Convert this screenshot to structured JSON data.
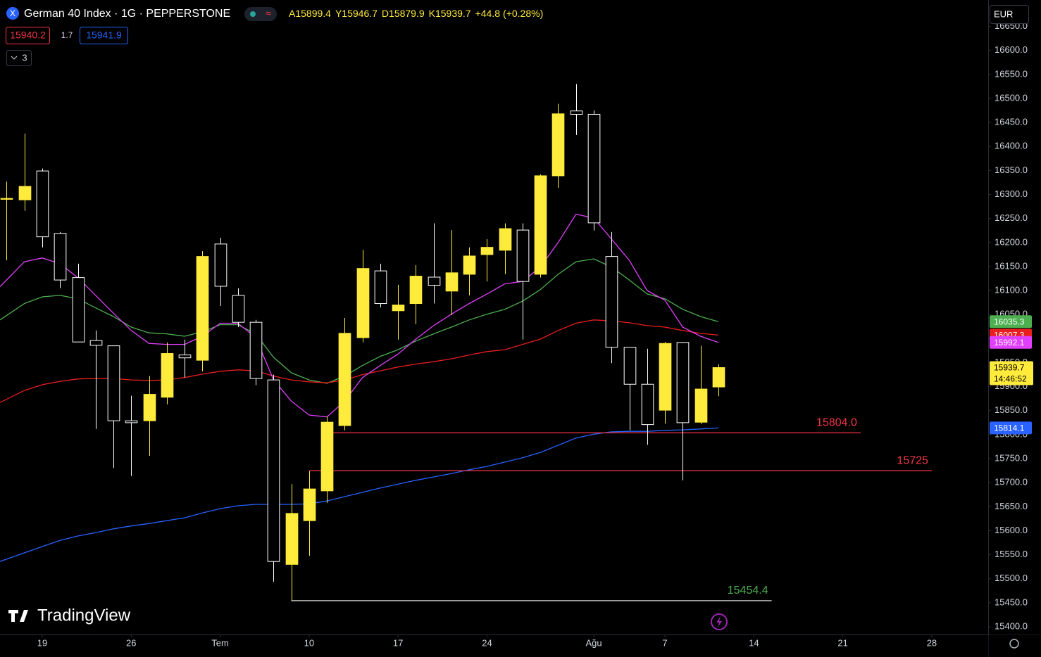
{
  "chart_data": {
    "type": "candlestick",
    "title": "German 40 Index · 1G · PEPPERSTONE",
    "ohlc_prefixes": [
      "A",
      "Y",
      "D",
      "K"
    ],
    "change": "+44.8",
    "change_pct": "(+0.28%)",
    "countdown": "14:46:52",
    "up_color": "#ffeb3b",
    "down_color": "#ffffff",
    "x": [
      -2,
      -1,
      0,
      1,
      2,
      3,
      4,
      5,
      6,
      7,
      8,
      9,
      10,
      11,
      12,
      13,
      14,
      15,
      16,
      17,
      18,
      19,
      20,
      21,
      22,
      23,
      24,
      25,
      26,
      27,
      28,
      29,
      30,
      31,
      32,
      33,
      34,
      35,
      36,
      37,
      38
    ],
    "open": [
      16290,
      16289,
      16349,
      16219,
      16127,
      15996,
      15985,
      15829,
      15829,
      15878,
      15966,
      15955,
      16197,
      16090,
      16034,
      15914,
      15530,
      15621,
      15683,
      15819,
      16002,
      16141,
      16058,
      16073,
      16128,
      16099,
      16134,
      16175,
      16184,
      16226,
      16134,
      16339,
      16474,
      16467,
      16171,
      15982,
      15905,
      15851,
      15992,
      15826,
      15899.4
    ],
    "high": [
      16327,
      16427,
      16354,
      16222,
      16156,
      16017,
      15985,
      15881,
      15922,
      15992,
      15998,
      16182,
      16210,
      16105,
      16039,
      15925,
      15697,
      15724,
      15838,
      16043,
      16185,
      16156,
      16112,
      16153,
      16240,
      16226,
      16190,
      16207,
      16240,
      16240,
      16342,
      16489,
      16530,
      16475,
      16222,
      15982,
      15979,
      15993,
      15993,
      15985,
      15946.7
    ],
    "low": [
      16163,
      16266,
      16190,
      16105,
      15993,
      15812,
      15731,
      15714,
      15756,
      15863,
      15919,
      15932,
      16068,
      16024,
      15903,
      15494,
      15454.4,
      15548,
      15658,
      15809,
      15992,
      16065,
      15998,
      16030,
      16073,
      16049,
      16090,
      16119,
      16134,
      15998,
      16127,
      16314,
      16424,
      16225,
      15949,
      15809,
      15779,
      15823,
      15705,
      15822,
      15879.9
    ],
    "close": [
      16292,
      16317,
      16212,
      16122,
      15993,
      15986,
      15829,
      15825,
      15884,
      15969,
      15960,
      16171,
      16109,
      16034,
      15917,
      15536,
      15636,
      15687,
      15826,
      16011,
      16146,
      16073,
      16070,
      16130,
      16111,
      16137,
      16172,
      16190,
      16229,
      16119,
      16339,
      16468,
      16467,
      16241,
      15982,
      15905,
      15821,
      15990,
      15825,
      15895,
      15939.7
    ],
    "line_x": [
      -2.375,
      -1,
      0,
      1,
      2,
      3,
      4,
      5,
      6,
      7,
      8,
      9,
      10,
      11,
      12,
      13,
      14,
      15,
      16,
      17,
      18,
      19,
      20,
      21,
      22,
      23,
      24,
      25,
      26,
      27,
      28,
      29,
      30,
      31,
      32,
      33,
      34,
      35,
      36,
      37,
      38
    ],
    "series": [
      {
        "color": "#4caf50",
        "values": [
          16039,
          16073,
          16087,
          16090,
          16083,
          16064,
          16046,
          16024,
          16012,
          16010,
          16005,
          16014,
          16029,
          16029,
          16010,
          15961,
          15929,
          15914,
          15907,
          15922,
          15944,
          15963,
          15977,
          15995,
          16010,
          16024,
          16039,
          16051,
          16061,
          16078,
          16102,
          16134,
          16160,
          16166,
          16149,
          16122,
          16093,
          16083,
          16061,
          16046,
          16035.3
        ]
      },
      {
        "color": "#e91e1e",
        "values": [
          15867,
          15892,
          15904,
          15911,
          15916,
          15917,
          15917,
          15914,
          15913,
          15914,
          15919,
          15926,
          15932,
          15935,
          15933,
          15922,
          15914,
          15910,
          15908,
          15914,
          15925,
          15933,
          15941,
          15947,
          15952,
          15958,
          15966,
          15973,
          15977,
          15988,
          15999,
          16017,
          16032,
          16039,
          16037,
          16033,
          16027,
          16024,
          16017,
          16011,
          16007.3
        ]
      },
      {
        "color": "#e040fb",
        "values": [
          16108,
          16160,
          16168,
          16156,
          16127,
          16090,
          16053,
          16017,
          15990,
          15988,
          15988,
          16005,
          16032,
          16032,
          16002,
          15914,
          15870,
          15841,
          15837,
          15870,
          15919,
          15944,
          15968,
          15999,
          16027,
          16051,
          16073,
          16093,
          16114,
          16119,
          16149,
          16200,
          16259,
          16251,
          16207,
          16163,
          16100,
          16080,
          16024,
          16005,
          15992.1
        ]
      },
      {
        "color": "#2962ff",
        "values": [
          15536,
          15554,
          15567,
          15580,
          15589,
          15596,
          15604,
          15610,
          15615,
          15621,
          15627,
          15637,
          15646,
          15652,
          15655,
          15655,
          15655,
          15656,
          15662,
          15671,
          15680,
          15689,
          15697,
          15705,
          15712,
          15719,
          15727,
          15734,
          15743,
          15752,
          15763,
          15778,
          15793,
          15801,
          15806,
          15807,
          15807,
          15809,
          15810,
          15812,
          15814.1
        ]
      }
    ],
    "levels": [
      {
        "value": 15804,
        "label": "15804.0",
        "color": "#f23645",
        "x_from": 16,
        "x_to": 46
      },
      {
        "value": 15725,
        "color": "#f23645",
        "x_from": 15,
        "x_to": 50
      },
      {
        "value": 15454.4,
        "color": "#ffffff",
        "label_color": "#4caf50",
        "x_from": 14,
        "x_to": 41
      }
    ],
    "xlim": [
      -2.375,
      53.17
    ],
    "xticks": [
      {
        "value": 0,
        "label": "19"
      },
      {
        "value": 5,
        "label": "26"
      },
      {
        "value": 10,
        "label": "Tem"
      },
      {
        "value": 15,
        "label": "10"
      },
      {
        "value": 20,
        "label": "17"
      },
      {
        "value": 25,
        "label": "24"
      },
      {
        "value": 31,
        "label": "Ağu"
      },
      {
        "value": 35,
        "label": "7"
      },
      {
        "value": 40,
        "label": "14"
      },
      {
        "value": 45,
        "label": "21"
      },
      {
        "value": 50,
        "label": "28"
      }
    ],
    "ylim": [
      15384,
      16705
    ],
    "yticks": [
      {
        "value": 15400,
        "label": "15400.0"
      },
      {
        "value": 15450,
        "label": "15450.0"
      },
      {
        "value": 15500,
        "label": "15500.0"
      },
      {
        "value": 15550,
        "label": "15550.0"
      },
      {
        "value": 15600,
        "label": "15600.0"
      },
      {
        "value": 15650,
        "label": "15650.0"
      },
      {
        "value": 15700,
        "label": "15700.0"
      },
      {
        "value": 15750,
        "label": "15750.0"
      },
      {
        "value": 15800,
        "label": "15800.0"
      },
      {
        "value": 15850,
        "label": "15850.0"
      },
      {
        "value": 15900,
        "label": "15900.0"
      },
      {
        "value": 15950,
        "label": "15950.0"
      },
      {
        "value": 16000,
        "label": "16000.0"
      },
      {
        "value": 16050,
        "label": "16050.0"
      },
      {
        "value": 16100,
        "label": "16100.0"
      },
      {
        "value": 16150,
        "label": "16150.0"
      },
      {
        "value": 16200,
        "label": "16200.0"
      },
      {
        "value": 16250,
        "label": "16250.0"
      },
      {
        "value": 16300,
        "label": "16300.0"
      },
      {
        "value": 16350,
        "label": "16350.0"
      },
      {
        "value": 16400,
        "label": "16400.0"
      },
      {
        "value": 16450,
        "label": "16450.0"
      },
      {
        "value": 16500,
        "label": "16500.0"
      },
      {
        "value": 16550,
        "label": "16550.0"
      },
      {
        "value": 16600,
        "label": "16600.0"
      },
      {
        "value": 16650,
        "label": "16650.0"
      }
    ]
  },
  "toolbar": {
    "bid": 15940.2,
    "spread": 1.7,
    "ask": 15941.9,
    "indicators": 3,
    "currency": "EUR"
  },
  "brand": "TradingView"
}
